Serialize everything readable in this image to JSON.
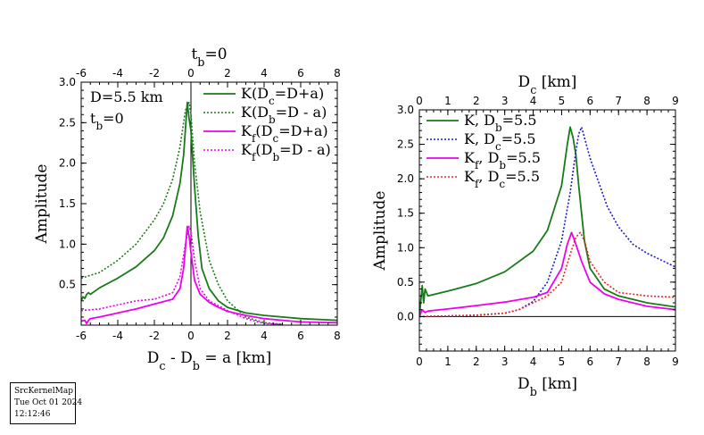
{
  "chart_data": [
    {
      "type": "line",
      "top_axis": {
        "label": "t_b=0",
        "ticks": [
          "-6",
          "-4",
          "-2",
          "0",
          "2",
          "4",
          "6",
          "8"
        ]
      },
      "xlabel": "D_c - D_b = a [km]",
      "ylabel": "Amplitude",
      "xlim": [
        -6,
        8
      ],
      "ylim": [
        0,
        3
      ],
      "xticks": [
        "-6",
        "-4",
        "-2",
        "0",
        "2",
        "4",
        "6",
        "8"
      ],
      "yticks": [
        "0.5",
        "1.0",
        "1.5",
        "2.0",
        "2.5",
        "3.0"
      ],
      "annotations": [
        "D=5.5 km",
        "t_b=0"
      ],
      "legend_position": "top-right",
      "series": [
        {
          "name": "K(D_c=D+a)",
          "color": "#1a7a1a",
          "style": "solid",
          "x": [
            -6,
            -5.9,
            -5.8,
            -5.7,
            -5.6,
            -5.5,
            -5.0,
            -4.0,
            -3.0,
            -2.0,
            -1.5,
            -1.0,
            -0.6,
            -0.4,
            -0.2,
            -0.1,
            0,
            0.2,
            0.4,
            0.6,
            1.0,
            1.5,
            2.0,
            3.0,
            4.0,
            5.0,
            6.0,
            8.0
          ],
          "y": [
            0.3,
            0.35,
            0.33,
            0.38,
            0.4,
            0.38,
            0.46,
            0.58,
            0.72,
            0.92,
            1.08,
            1.35,
            1.75,
            2.1,
            2.75,
            2.55,
            2.4,
            1.7,
            1.1,
            0.7,
            0.45,
            0.3,
            0.22,
            0.15,
            0.12,
            0.1,
            0.08,
            0.06
          ]
        },
        {
          "name": "K(D_b=D - a)",
          "color": "#1a7a1a",
          "style": "dotted",
          "x": [
            -6,
            -5.0,
            -4.0,
            -3.0,
            -2.0,
            -1.5,
            -1.0,
            -0.6,
            -0.3,
            -0.1,
            0,
            0.2,
            0.5,
            1.0,
            1.5,
            2.0,
            3.0,
            4.0,
            5.0
          ],
          "y": [
            0.58,
            0.65,
            0.8,
            1.0,
            1.3,
            1.5,
            1.8,
            2.2,
            2.65,
            2.75,
            2.6,
            2.0,
            1.4,
            0.8,
            0.5,
            0.3,
            0.1,
            0.03,
            0.01
          ]
        },
        {
          "name": "K_f(D_c=D+a)",
          "color": "#ee00ee",
          "style": "solid",
          "x": [
            -6,
            -5.8,
            -5.7,
            -5.6,
            -5.5,
            -5.0,
            -4.0,
            -3.0,
            -2.0,
            -1.0,
            -0.6,
            -0.4,
            -0.2,
            -0.1,
            0,
            0.2,
            0.5,
            1.0,
            1.5,
            2.0,
            3.0,
            4.0,
            5.0,
            6.0,
            8.0
          ],
          "y": [
            0.05,
            0.06,
            0.02,
            0.06,
            0.08,
            0.1,
            0.15,
            0.2,
            0.26,
            0.32,
            0.45,
            0.7,
            1.22,
            1.1,
            0.9,
            0.55,
            0.38,
            0.28,
            0.22,
            0.17,
            0.12,
            0.08,
            0.06,
            0.04,
            0.03
          ]
        },
        {
          "name": "K_f(D_b=D - a)",
          "color": "#ee00ee",
          "style": "dotted",
          "x": [
            -6,
            -5.0,
            -4.0,
            -3.0,
            -2.0,
            -1.0,
            -0.6,
            -0.3,
            -0.1,
            0,
            0.2,
            0.5,
            1.0,
            2.0,
            3.0,
            4.0,
            5.0
          ],
          "y": [
            0.18,
            0.2,
            0.25,
            0.3,
            0.32,
            0.4,
            0.6,
            1.0,
            1.22,
            1.15,
            0.8,
            0.45,
            0.3,
            0.18,
            0.08,
            0.02,
            0.01
          ]
        }
      ]
    },
    {
      "type": "line",
      "top_axis": {
        "label": "D_c [km]",
        "ticks": [
          "0",
          "1",
          "2",
          "3",
          "4",
          "5",
          "6",
          "7",
          "8",
          "9"
        ]
      },
      "xlabel": "D_b [km]",
      "ylabel": "Amplitude",
      "xlim": [
        0,
        9
      ],
      "ylim": [
        -0.5,
        3
      ],
      "xticks": [
        "0",
        "1",
        "2",
        "3",
        "4",
        "5",
        "6",
        "7",
        "8",
        "9"
      ],
      "yticks": [
        "0.0",
        "0.5",
        "1.0",
        "1.5",
        "2.0",
        "2.5",
        "3.0"
      ],
      "legend_position": "top-left",
      "series": [
        {
          "name": "K, D_b=5.5",
          "color": "#1a7a1a",
          "style": "solid",
          "x": [
            0,
            0.1,
            0.15,
            0.2,
            0.3,
            0.5,
            1.0,
            2.0,
            3.0,
            4.0,
            4.5,
            5.0,
            5.2,
            5.3,
            5.4,
            5.5,
            5.6,
            5.8,
            6.0,
            6.5,
            7.0,
            8.0,
            9.0
          ],
          "y": [
            0,
            0.45,
            0.2,
            0.4,
            0.3,
            0.32,
            0.37,
            0.48,
            0.65,
            0.95,
            1.25,
            1.9,
            2.5,
            2.75,
            2.6,
            2.35,
            1.9,
            1.1,
            0.7,
            0.4,
            0.3,
            0.2,
            0.14
          ]
        },
        {
          "name": "K, D_c=5.5",
          "color": "#1a1acc",
          "style": "dotted",
          "x": [
            0,
            1.0,
            2.0,
            3.0,
            3.5,
            4.0,
            4.5,
            5.0,
            5.3,
            5.5,
            5.6,
            5.7,
            5.8,
            6.0,
            6.3,
            6.6,
            7.0,
            7.5,
            8.0,
            8.5,
            9.0
          ],
          "y": [
            0,
            0.01,
            0.02,
            0.05,
            0.1,
            0.22,
            0.5,
            1.1,
            1.8,
            2.4,
            2.65,
            2.75,
            2.6,
            2.3,
            1.95,
            1.6,
            1.3,
            1.05,
            0.92,
            0.82,
            0.72
          ]
        },
        {
          "name": "K_f, D_b=5.5",
          "color": "#ee00ee",
          "style": "solid",
          "x": [
            0,
            0.1,
            0.2,
            0.3,
            0.5,
            1.0,
            2.0,
            3.0,
            4.0,
            4.5,
            5.0,
            5.2,
            5.35,
            5.5,
            5.7,
            6.0,
            6.5,
            7.0,
            8.0,
            9.0
          ],
          "y": [
            0,
            0.1,
            0.06,
            0.08,
            0.09,
            0.11,
            0.16,
            0.21,
            0.28,
            0.35,
            0.7,
            1.05,
            1.22,
            1.05,
            0.8,
            0.5,
            0.33,
            0.25,
            0.15,
            0.1
          ]
        },
        {
          "name": "K_f, D_c=5.5",
          "color": "#ee2222",
          "style": "dotted",
          "x": [
            0,
            1.0,
            2.0,
            3.0,
            3.5,
            4.0,
            4.5,
            5.0,
            5.3,
            5.5,
            5.65,
            5.8,
            6.0,
            6.5,
            7.0,
            8.0,
            9.0
          ],
          "y": [
            0,
            0.01,
            0.02,
            0.05,
            0.1,
            0.2,
            0.3,
            0.5,
            0.9,
            1.15,
            1.22,
            1.1,
            0.8,
            0.5,
            0.35,
            0.3,
            0.28
          ]
        }
      ]
    }
  ],
  "stamp": {
    "line1": "SrcKernelMap",
    "line2": "Tue Oct 01 2024",
    "line3": "12:12:46"
  }
}
